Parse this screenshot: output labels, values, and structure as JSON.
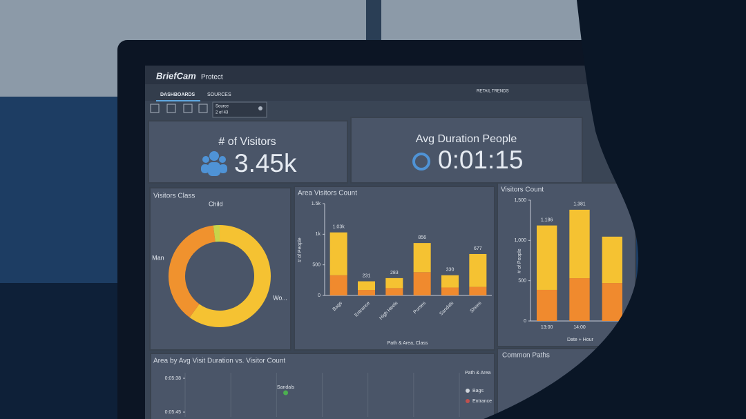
{
  "header": {
    "brand": "BriefCam",
    "product": "Protect"
  },
  "tabs": [
    "DASHBOARDS",
    "SOURCES"
  ],
  "dashboard_name": "RETAIL TRENDS",
  "source": {
    "label": "Source",
    "count": "2 of 43"
  },
  "kpis": [
    {
      "title": "# of Visitors",
      "value": "3.45k"
    },
    {
      "title": "Avg Duration People",
      "value": "0:01:15"
    }
  ],
  "chart_data": [
    {
      "type": "donut",
      "title": "Visitors Class",
      "categories": [
        "Child",
        "Man",
        "Wo..."
      ],
      "values": [
        2,
        38,
        60
      ],
      "colors": [
        "#c8d44a",
        "#f0922e",
        "#f5c232"
      ]
    },
    {
      "type": "bar",
      "title": "Area Visitors Count",
      "categories": [
        "Bags",
        "Entrance",
        "High Heels",
        "Purses",
        "Sandals",
        "Shoes"
      ],
      "series": [
        {
          "color": "#f08a2e",
          "values": [
            330,
            90,
            120,
            380,
            130,
            140
          ]
        },
        {
          "color": "#f5c232",
          "values": [
            700,
            141,
            163,
            476,
            200,
            537
          ]
        }
      ],
      "totals": [
        1030,
        231,
        283,
        856,
        330,
        677
      ],
      "total_labels": [
        "1.03k",
        "231",
        "283",
        "856",
        "330",
        "677"
      ],
      "ylim": [
        0,
        1500
      ],
      "yticks": [
        0,
        500,
        {
          "value": 1000,
          "label": "1k"
        },
        {
          "value": 1500,
          "label": "1.5k"
        }
      ],
      "ylabel": "# of People",
      "xlabel": "Path & Area, Class"
    },
    {
      "type": "bar",
      "title": "Visitors Count",
      "categories": [
        "13:00",
        "14:00",
        null
      ],
      "series": [
        {
          "color": "#f08a2e",
          "values": [
            386,
            531,
            471
          ]
        },
        {
          "color": "#f5c232",
          "values": [
            800,
            850,
            576
          ]
        }
      ],
      "totals": [
        1186,
        1381,
        1047
      ],
      "total_labels": [
        "1,186",
        "1,381",
        null
      ],
      "ylim": [
        0,
        1500
      ],
      "yticks": [
        0,
        500,
        {
          "value": 1000,
          "label": "1,000"
        },
        {
          "value": 1500,
          "label": "1,500"
        }
      ],
      "ylabel": "# of People",
      "xlabel": "Date + Hour"
    },
    {
      "type": "scatter",
      "title": "Area by Avg Visit Duration vs. Visitor Count",
      "xlim": [
        0,
        900
      ],
      "ylim": [
        346,
        338
      ],
      "yticks": [
        {
          "value": 338,
          "label": "0:05:38"
        },
        {
          "value": 345,
          "label": "0:05:45"
        }
      ],
      "points": [
        {
          "label": "Sandals",
          "x": 330,
          "y": 341,
          "color": "#4caf50"
        }
      ],
      "legend_title": "Path & Area",
      "legend": [
        {
          "name": "Bags",
          "color": "#cfd4db"
        },
        {
          "name": "Entrance",
          "color": "#c0504d"
        }
      ]
    }
  ],
  "panels": {
    "common_paths": "Common Paths"
  }
}
